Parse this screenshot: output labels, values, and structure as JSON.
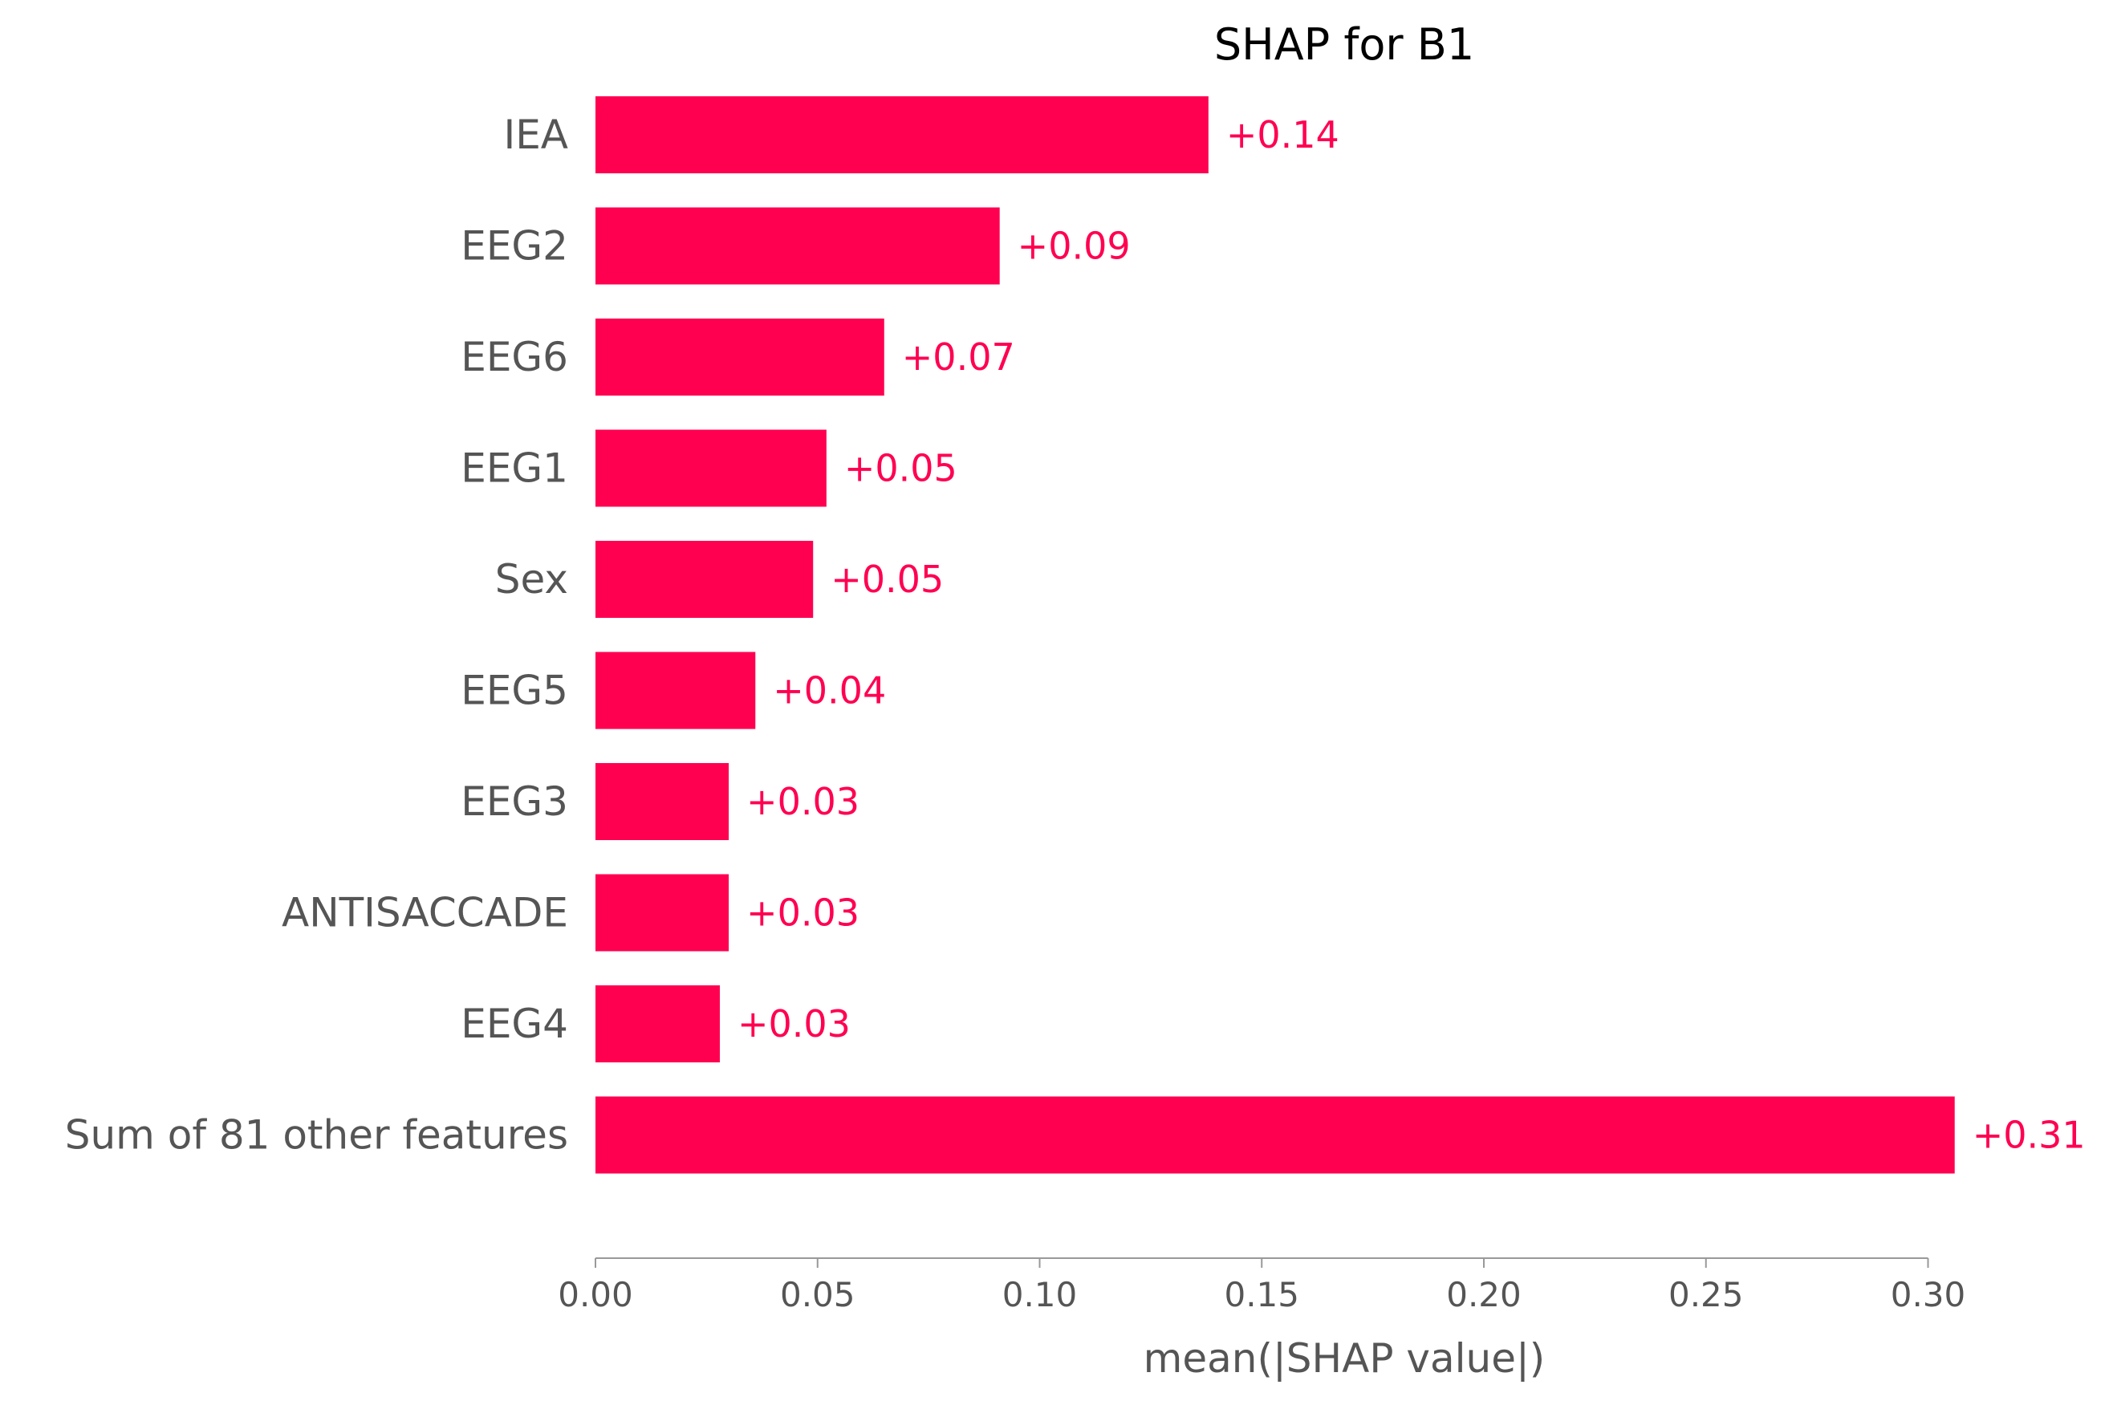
{
  "chart_data": {
    "type": "bar",
    "orientation": "horizontal",
    "title": "SHAP for B1",
    "xlabel": "mean(|SHAP value|)",
    "ylabel": "",
    "xlim": [
      0,
      0.3115
    ],
    "xticks": [
      0.0,
      0.05,
      0.1,
      0.15,
      0.2,
      0.25,
      0.3
    ],
    "xtick_labels": [
      "0.00",
      "0.05",
      "0.10",
      "0.15",
      "0.20",
      "0.25",
      "0.30"
    ],
    "grid": false,
    "legend": "none",
    "categories": [
      "IEA",
      "EEG2",
      "EEG6",
      "EEG1",
      "Sex",
      "EEG5",
      "EEG3",
      "ANTISACCADE",
      "EEG4",
      "Sum of 81 other features"
    ],
    "values": [
      0.138,
      0.091,
      0.065,
      0.052,
      0.049,
      0.036,
      0.03,
      0.03,
      0.028,
      0.306
    ],
    "value_labels": [
      "+0.14",
      "+0.09",
      "+0.07",
      "+0.05",
      "+0.05",
      "+0.04",
      "+0.03",
      "+0.03",
      "+0.03",
      "+0.31"
    ],
    "bar_color": "#ff0051",
    "value_label_color": "#ff0051",
    "text_color": "#555555",
    "axis_color": "#999999"
  }
}
